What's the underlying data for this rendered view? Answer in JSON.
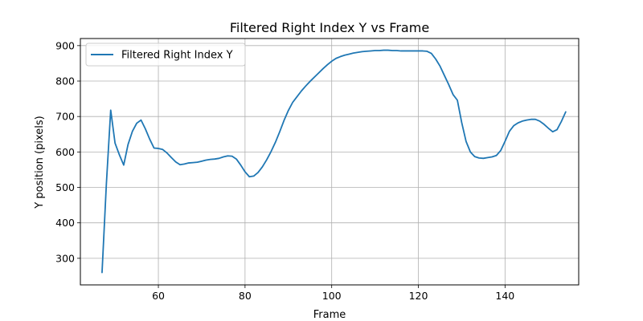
{
  "chart_data": {
    "type": "line",
    "title": "Filtered Right Index Y vs Frame",
    "xlabel": "Frame",
    "ylabel": "Y position (pixels)",
    "xlim": [
      42,
      157
    ],
    "ylim": [
      225,
      920
    ],
    "xticks": [
      60,
      80,
      100,
      120,
      140
    ],
    "yticks": [
      300,
      400,
      500,
      600,
      700,
      800,
      900
    ],
    "grid": true,
    "legend_position": "upper-left",
    "series": [
      {
        "name": "Filtered Right Index Y",
        "color": "#1f77b4",
        "x": [
          47,
          48,
          49,
          50,
          51,
          52,
          53,
          54,
          55,
          56,
          57,
          58,
          59,
          60,
          61,
          62,
          63,
          64,
          65,
          66,
          67,
          68,
          69,
          70,
          71,
          72,
          73,
          74,
          75,
          76,
          77,
          78,
          79,
          80,
          81,
          82,
          83,
          84,
          85,
          86,
          87,
          88,
          89,
          90,
          91,
          92,
          93,
          94,
          95,
          96,
          97,
          98,
          99,
          100,
          101,
          102,
          103,
          104,
          105,
          106,
          107,
          108,
          109,
          110,
          111,
          112,
          113,
          114,
          115,
          116,
          117,
          118,
          119,
          120,
          121,
          122,
          123,
          124,
          125,
          126,
          127,
          128,
          129,
          130,
          131,
          132,
          133,
          134,
          135,
          136,
          137,
          138,
          139,
          140,
          141,
          142,
          143,
          144,
          145,
          146,
          147,
          148,
          149,
          150,
          151,
          152,
          153,
          154
        ],
        "values": [
          260,
          510,
          718,
          625,
          592,
          563,
          621,
          658,
          681,
          690,
          665,
          636,
          611,
          610,
          607,
          597,
          584,
          572,
          564,
          566,
          569,
          570,
          571,
          574,
          577,
          579,
          580,
          582,
          586,
          589,
          588,
          580,
          563,
          544,
          530,
          532,
          542,
          558,
          578,
          601,
          627,
          657,
          689,
          717,
          740,
          756,
          772,
          786,
          799,
          811,
          823,
          835,
          846,
          856,
          864,
          869,
          873,
          876,
          879,
          881,
          883,
          884,
          885,
          886,
          886,
          887,
          887,
          886,
          886,
          885,
          885,
          885,
          885,
          885,
          885,
          884,
          878,
          862,
          842,
          816,
          790,
          762,
          746,
          683,
          630,
          600,
          587,
          583,
          582,
          584,
          586,
          590,
          604,
          630,
          658,
          674,
          682,
          687,
          690,
          692,
          692,
          687,
          678,
          667,
          657,
          663,
          686,
          713
        ]
      }
    ]
  }
}
